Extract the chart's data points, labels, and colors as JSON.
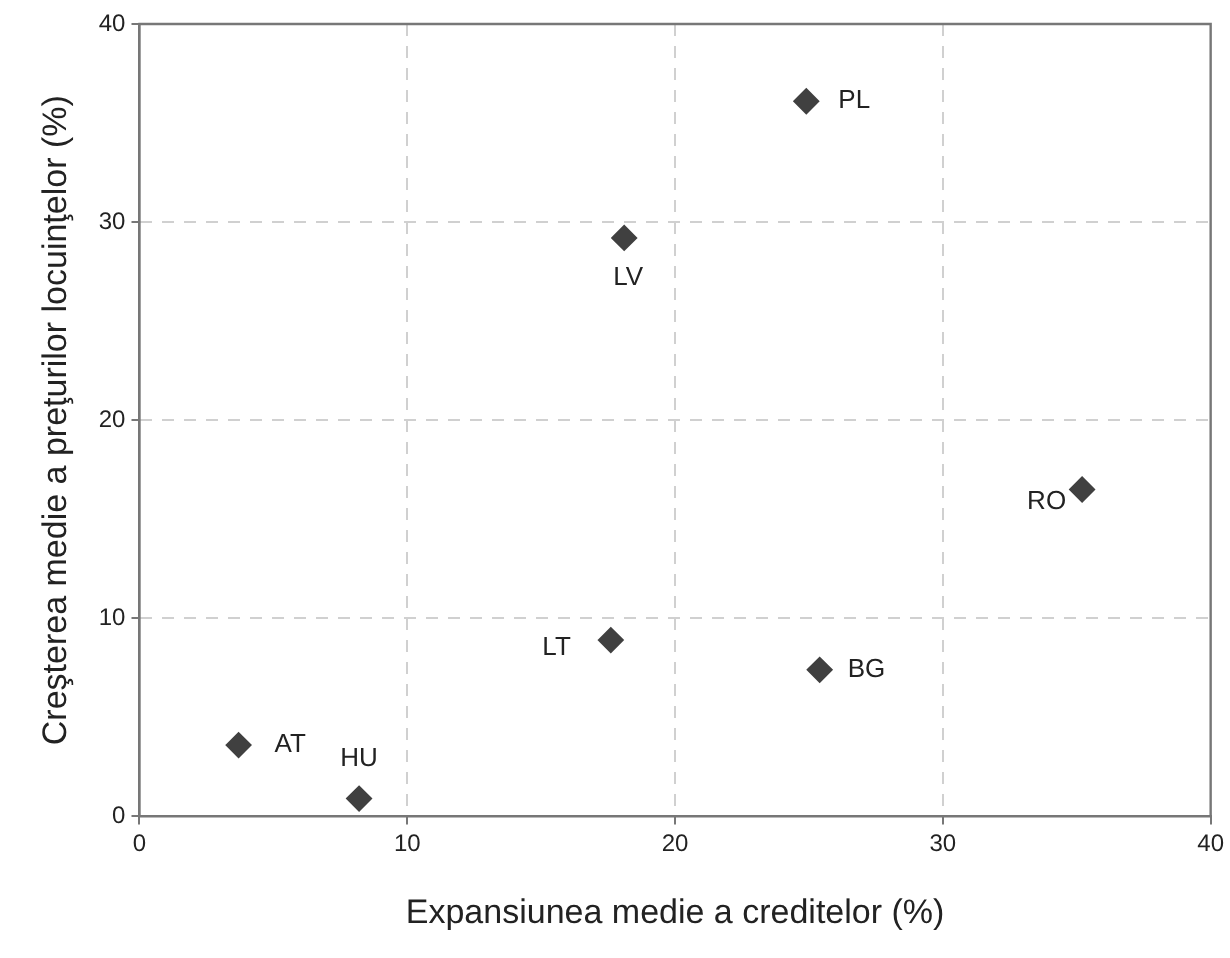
{
  "chart_data": {
    "type": "scatter",
    "xlabel": "Expansiunea medie a creditelor (%)",
    "ylabel": "Creşterea medie a preţurilor locuinţelor (%)",
    "x": [
      3.7,
      8.2,
      17.6,
      18.1,
      24.9,
      25.4,
      35.2
    ],
    "series": [
      {
        "color": "#404040",
        "values": [
          3.6,
          0.9,
          8.9,
          29.2,
          36.1,
          7.4,
          16.5
        ]
      }
    ],
    "annotations": [
      {
        "text": "AT",
        "x": 3.7,
        "y": 3.6
      },
      {
        "text": "HU",
        "x": 8.2,
        "y": 0.9
      },
      {
        "text": "LT",
        "x": 17.6,
        "y": 8.9
      },
      {
        "text": "LV",
        "x": 18.1,
        "y": 29.2
      },
      {
        "text": "PL",
        "x": 24.9,
        "y": 36.1
      },
      {
        "text": "BG",
        "x": 25.4,
        "y": 7.4
      },
      {
        "text": "RO",
        "x": 35.2,
        "y": 16.5
      }
    ],
    "xlim": [
      0,
      40
    ],
    "xticks": [
      0,
      10,
      20,
      30,
      40
    ],
    "ylim": [
      0,
      40
    ],
    "yticks": [
      0,
      10,
      20,
      30,
      40
    ],
    "grid": true,
    "legend": false,
    "marker": "diamond"
  }
}
